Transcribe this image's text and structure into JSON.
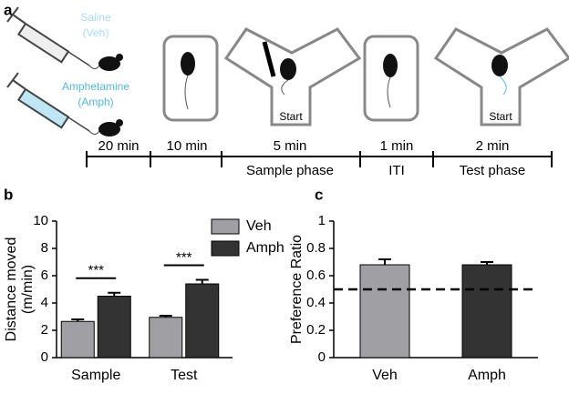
{
  "panel_a": {
    "label": "a",
    "syringes": [
      {
        "lines": [
          "Saline",
          "(Veh)"
        ],
        "color": "#a9dcef"
      },
      {
        "lines": [
          "Amphetamine",
          "(Amph)"
        ],
        "color": "#4fb9df"
      }
    ],
    "start_labels": [
      "Start",
      "Start"
    ],
    "durations": [
      "20 min",
      "10 min",
      "5 min",
      "1 min",
      "2 min"
    ],
    "phases": [
      "Sample phase",
      "ITI",
      "Test phase"
    ]
  },
  "chart_data": [
    {
      "type": "grouped_bar",
      "panel_label": "b",
      "ylabel": [
        "Distance moved",
        "(m/min)"
      ],
      "categories": [
        "Sample",
        "Test"
      ],
      "series": [
        {
          "name": "Veh",
          "color": "#a0a0a4",
          "values": [
            2.65,
            2.95
          ],
          "errors": [
            0.15,
            0.12
          ]
        },
        {
          "name": "Amph",
          "color": "#333333",
          "values": [
            4.5,
            5.4
          ],
          "errors": [
            0.25,
            0.3
          ]
        }
      ],
      "significance": [
        "***",
        "***"
      ],
      "ylim": [
        0,
        10
      ],
      "yticks": [
        0,
        2,
        4,
        6,
        8,
        10
      ],
      "legend": "upper right"
    },
    {
      "type": "bar",
      "panel_label": "c",
      "ylabel": [
        "Preference Ratio"
      ],
      "categories": [
        "Veh",
        "Amph"
      ],
      "values": [
        0.68,
        0.68
      ],
      "errors": [
        0.04,
        0.02
      ],
      "colors": [
        "#a0a0a4",
        "#333333"
      ],
      "reference_line": 0.5,
      "ylim": [
        0,
        1
      ],
      "yticks": [
        0,
        0.2,
        0.4,
        0.6,
        0.8,
        1
      ]
    }
  ]
}
